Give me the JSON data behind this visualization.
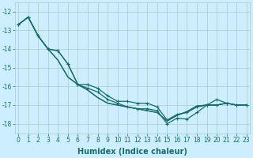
{
  "xlabel": "Humidex (Indice chaleur)",
  "background_color": "#cceeff",
  "grid_color": "#aacccc",
  "line_color": "#1a6b6b",
  "x": [
    0,
    1,
    2,
    3,
    4,
    5,
    6,
    7,
    8,
    9,
    10,
    11,
    12,
    13,
    14,
    15,
    16,
    17,
    18,
    19,
    20,
    21,
    22,
    23
  ],
  "series": [
    {
      "y": [
        -12.7,
        -12.3,
        -13.3,
        -14.0,
        -14.1,
        -14.8,
        -15.9,
        -15.9,
        -16.1,
        -16.5,
        -16.8,
        -16.8,
        -16.9,
        -16.9,
        -17.1,
        -17.8,
        -17.5,
        -17.4,
        -17.1,
        -17.0,
        -16.7,
        -16.9,
        -17.0,
        -17.0
      ],
      "marker": true,
      "lw": 0.9
    },
    {
      "y": [
        -12.7,
        -12.3,
        -13.3,
        -14.0,
        -14.6,
        -15.5,
        -15.9,
        -16.2,
        -16.6,
        -16.9,
        -17.0,
        -17.1,
        -17.2,
        -17.3,
        -17.4,
        -17.85,
        -17.55,
        -17.35,
        -17.05,
        -17.0,
        -17.0,
        -16.9,
        -17.0,
        -17.0
      ],
      "marker": false,
      "lw": 0.9
    },
    {
      "y": [
        -12.7,
        -12.3,
        -13.3,
        -14.0,
        -14.1,
        -14.8,
        -15.9,
        -16.1,
        -16.3,
        -16.7,
        -16.9,
        -17.1,
        -17.2,
        -17.2,
        -17.3,
        -18.0,
        -17.7,
        -17.75,
        -17.4,
        -17.0,
        -17.0,
        -16.9,
        -17.0,
        -17.0
      ],
      "marker": true,
      "lw": 0.9
    },
    {
      "y": [
        -12.7,
        -12.3,
        -13.3,
        -14.0,
        -14.6,
        -15.5,
        -15.9,
        -16.2,
        -16.6,
        -16.9,
        -17.0,
        -17.1,
        -17.2,
        -17.3,
        -17.4,
        -17.85,
        -17.55,
        -17.35,
        -17.05,
        -17.0,
        -17.0,
        -16.9,
        -17.0,
        -17.0
      ],
      "marker": false,
      "lw": 0.9
    }
  ],
  "ylim": [
    -18.5,
    -11.5
  ],
  "yticks": [
    -12,
    -13,
    -14,
    -15,
    -16,
    -17,
    -18
  ],
  "xlim": [
    -0.3,
    23.3
  ],
  "xticks": [
    0,
    1,
    2,
    3,
    4,
    5,
    6,
    7,
    8,
    9,
    10,
    11,
    12,
    13,
    14,
    15,
    16,
    17,
    18,
    19,
    20,
    21,
    22,
    23
  ],
  "tick_fontsize": 5.5,
  "xlabel_fontsize": 7
}
